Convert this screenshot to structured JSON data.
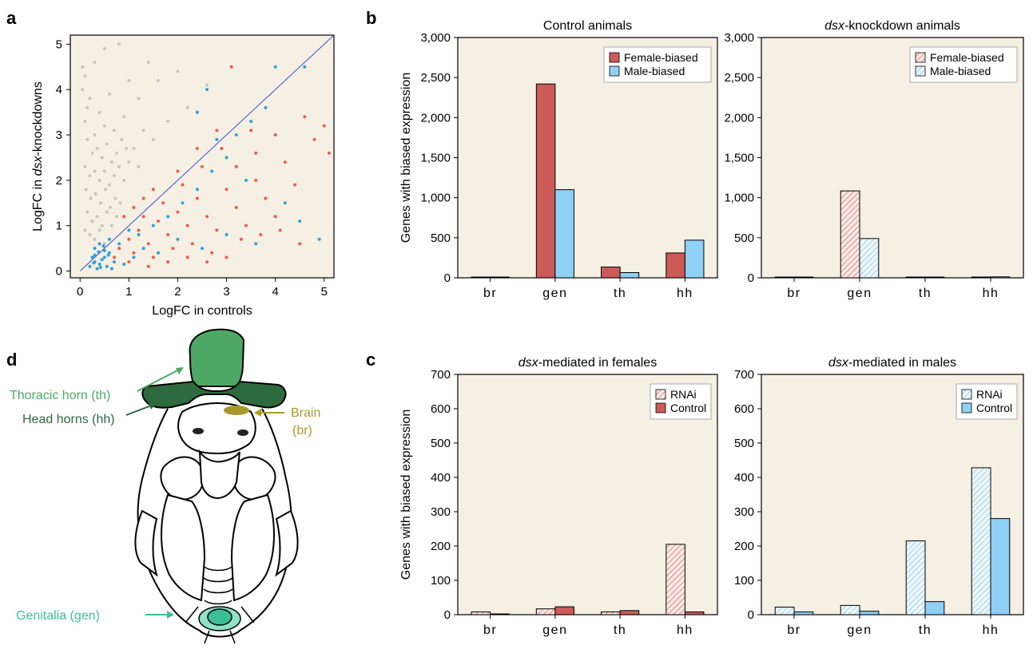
{
  "panel_letters": {
    "a": "a",
    "b": "b",
    "c": "c",
    "d": "d"
  },
  "colors": {
    "panel_bg": "#f5f0e3",
    "female": "#cc5a58",
    "male": "#8fd0f5",
    "scatter_gray": "#c4c4c4",
    "scatter_red": "#ee5a52",
    "scatter_blue": "#2ea0d8",
    "diagonal": "#3d4fd6",
    "thoracic_horn": "#4ea865",
    "head_horns": "#2d6a3e",
    "brain": "#a89a2a",
    "genitalia": "#3dbf95"
  },
  "diagram": {
    "thoracic_horn_label": "Thoracic horn (th)",
    "head_horns_label": "Head horns (hh)",
    "brain_label_1": "Brain",
    "brain_label_2": "(br)",
    "genitalia_label": "Genitalia (gen)"
  },
  "chart_data": [
    {
      "id": "a",
      "type": "scatter",
      "xlabel": "LogFC in controls",
      "ylabel_pre": "LogFC in ",
      "ylabel_italic": "dsx",
      "ylabel_post": "-knockdowns",
      "xlim": [
        -0.2,
        5.2
      ],
      "ylim": [
        -0.15,
        5.2
      ],
      "xticks": [
        0,
        1,
        2,
        3,
        4,
        5
      ],
      "yticks": [
        0,
        1,
        2,
        3,
        4,
        5
      ],
      "diagonal": "y = x",
      "series": [
        {
          "color_key": "scatter_gray",
          "points": [
            [
              0.05,
              4.5
            ],
            [
              0.1,
              4.3
            ],
            [
              0.3,
              4.6
            ],
            [
              0.5,
              4.9
            ],
            [
              0.8,
              5.0
            ],
            [
              0.2,
              3.8
            ],
            [
              0.4,
              3.5
            ],
            [
              0.6,
              3.9
            ],
            [
              1.0,
              4.2
            ],
            [
              1.4,
              4.6
            ],
            [
              0.1,
              3.3
            ],
            [
              0.3,
              3.0
            ],
            [
              0.5,
              3.2
            ],
            [
              0.7,
              3.1
            ],
            [
              0.9,
              3.4
            ],
            [
              1.2,
              3.8
            ],
            [
              1.6,
              4.2
            ],
            [
              2.0,
              4.4
            ],
            [
              0.15,
              2.9
            ],
            [
              0.25,
              2.6
            ],
            [
              0.35,
              2.7
            ],
            [
              0.45,
              2.5
            ],
            [
              0.55,
              2.8
            ],
            [
              0.65,
              2.4
            ],
            [
              0.75,
              2.6
            ],
            [
              0.85,
              2.9
            ],
            [
              1.1,
              2.7
            ],
            [
              1.3,
              3.1
            ],
            [
              0.1,
              2.3
            ],
            [
              0.2,
              2.1
            ],
            [
              0.3,
              2.2
            ],
            [
              0.4,
              2.0
            ],
            [
              0.5,
              2.2
            ],
            [
              0.6,
              1.9
            ],
            [
              0.7,
              2.1
            ],
            [
              0.8,
              2.3
            ],
            [
              0.9,
              2.0
            ],
            [
              1.0,
              2.4
            ],
            [
              1.2,
              2.3
            ],
            [
              0.12,
              1.8
            ],
            [
              0.22,
              1.6
            ],
            [
              0.32,
              1.7
            ],
            [
              0.42,
              1.5
            ],
            [
              0.52,
              1.8
            ],
            [
              0.62,
              1.4
            ],
            [
              0.72,
              1.6
            ],
            [
              0.82,
              1.5
            ],
            [
              0.15,
              1.3
            ],
            [
              0.25,
              1.1
            ],
            [
              0.35,
              1.2
            ],
            [
              0.45,
              1.0
            ],
            [
              0.55,
              1.3
            ],
            [
              0.65,
              1.0
            ],
            [
              0.75,
              1.2
            ],
            [
              0.1,
              0.9
            ],
            [
              0.2,
              0.8
            ],
            [
              0.3,
              0.7
            ],
            [
              0.4,
              0.9
            ],
            [
              0.5,
              0.6
            ],
            [
              1.5,
              2.9
            ],
            [
              1.8,
              3.3
            ],
            [
              2.2,
              3.6
            ],
            [
              2.6,
              4.1
            ],
            [
              0.05,
              4.0
            ],
            [
              0.15,
              3.6
            ],
            [
              0.95,
              2.7
            ]
          ]
        },
        {
          "color_key": "scatter_red",
          "points": [
            [
              0.8,
              0.5
            ],
            [
              1.0,
              0.7
            ],
            [
              1.2,
              0.9
            ],
            [
              1.4,
              0.6
            ],
            [
              1.6,
              1.1
            ],
            [
              1.8,
              0.8
            ],
            [
              2.0,
              1.3
            ],
            [
              2.2,
              1.0
            ],
            [
              2.4,
              1.6
            ],
            [
              2.6,
              1.2
            ],
            [
              2.8,
              0.9
            ],
            [
              3.0,
              1.8
            ],
            [
              3.2,
              1.4
            ],
            [
              3.4,
              1.0
            ],
            [
              3.6,
              2.0
            ],
            [
              3.8,
              1.6
            ],
            [
              4.0,
              1.2
            ],
            [
              4.2,
              2.4
            ],
            [
              4.4,
              1.9
            ],
            [
              4.6,
              3.4
            ],
            [
              4.8,
              2.9
            ],
            [
              5.0,
              3.2
            ],
            [
              5.1,
              2.6
            ],
            [
              3.1,
              4.5
            ],
            [
              3.5,
              3.1
            ],
            [
              2.9,
              2.7
            ],
            [
              2.5,
              2.3
            ],
            [
              2.1,
              1.9
            ],
            [
              1.7,
              1.5
            ],
            [
              1.3,
              1.2
            ],
            [
              1.1,
              0.4
            ],
            [
              1.5,
              0.3
            ],
            [
              1.9,
              0.5
            ],
            [
              2.3,
              0.6
            ],
            [
              2.7,
              0.4
            ],
            [
              3.3,
              0.7
            ],
            [
              3.7,
              0.8
            ],
            [
              4.1,
              0.9
            ],
            [
              4.5,
              0.6
            ],
            [
              2.0,
              2.2
            ],
            [
              2.4,
              2.7
            ],
            [
              2.8,
              3.1
            ],
            [
              3.2,
              2.3
            ],
            [
              3.6,
              2.6
            ],
            [
              4.0,
              3.0
            ],
            [
              0.9,
              1.2
            ],
            [
              1.1,
              1.4
            ],
            [
              1.3,
              1.6
            ],
            [
              1.5,
              1.8
            ],
            [
              0.7,
              0.3
            ],
            [
              1.0,
              0.2
            ],
            [
              1.4,
              0.1
            ],
            [
              1.8,
              0.2
            ],
            [
              2.2,
              0.3
            ],
            [
              2.6,
              0.2
            ],
            [
              3.0,
              0.3
            ]
          ]
        },
        {
          "color_key": "scatter_blue",
          "points": [
            [
              0.2,
              0.1
            ],
            [
              0.3,
              0.2
            ],
            [
              0.4,
              0.15
            ],
            [
              0.5,
              0.3
            ],
            [
              0.35,
              0.05
            ],
            [
              0.45,
              0.25
            ],
            [
              0.55,
              0.1
            ],
            [
              0.25,
              0.3
            ],
            [
              0.6,
              0.4
            ],
            [
              0.7,
              0.2
            ],
            [
              0.3,
              0.5
            ],
            [
              0.4,
              0.6
            ],
            [
              0.5,
              0.45
            ],
            [
              0.6,
              0.7
            ],
            [
              0.8,
              0.6
            ],
            [
              1.0,
              0.9
            ],
            [
              1.2,
              0.8
            ],
            [
              1.5,
              1.0
            ],
            [
              1.8,
              1.2
            ],
            [
              2.1,
              1.5
            ],
            [
              2.4,
              1.8
            ],
            [
              2.7,
              2.2
            ],
            [
              3.0,
              2.5
            ],
            [
              3.2,
              3.0
            ],
            [
              3.5,
              3.3
            ],
            [
              3.8,
              3.6
            ],
            [
              4.0,
              4.5
            ],
            [
              4.6,
              4.5
            ],
            [
              2.6,
              4.0
            ],
            [
              2.4,
              3.5
            ],
            [
              2.8,
              2.9
            ],
            [
              3.4,
              2.0
            ],
            [
              4.2,
              1.5
            ],
            [
              4.5,
              1.1
            ],
            [
              4.9,
              0.7
            ],
            [
              2.0,
              0.7
            ],
            [
              2.5,
              0.5
            ],
            [
              3.0,
              0.8
            ],
            [
              3.6,
              0.6
            ],
            [
              1.6,
              0.4
            ],
            [
              1.3,
              0.5
            ],
            [
              1.1,
              0.3
            ],
            [
              0.9,
              0.15
            ],
            [
              0.65,
              0.05
            ],
            [
              0.3,
              0.35
            ],
            [
              0.38,
              0.42
            ],
            [
              0.48,
              0.55
            ],
            [
              0.58,
              0.35
            ],
            [
              0.28,
              0.18
            ],
            [
              0.42,
              0.08
            ]
          ]
        }
      ]
    },
    {
      "id": "b-left",
      "type": "bar",
      "title": "Control animals",
      "ylabel": "Genes with biased expression",
      "categories": [
        "br",
        "gen",
        "th",
        "hh"
      ],
      "ylim": [
        0,
        3000
      ],
      "yticks": [
        "0",
        "500",
        "1,000",
        "1,500",
        "2,000",
        "2,500",
        "3,000"
      ],
      "series": [
        {
          "name": "Female-biased",
          "values": [
            5,
            2420,
            135,
            310
          ],
          "color_key": "female",
          "hatched": false
        },
        {
          "name": "Male-biased",
          "values": [
            8,
            1100,
            65,
            470
          ],
          "color_key": "male",
          "hatched": false
        }
      ]
    },
    {
      "id": "b-right",
      "type": "bar",
      "title_italic": "dsx",
      "title_rest": "-knockdown animals",
      "categories": [
        "br",
        "gen",
        "th",
        "hh"
      ],
      "ylim": [
        0,
        3000
      ],
      "yticks": [
        "0",
        "500",
        "1,000",
        "1,500",
        "2,000",
        "2,500",
        "3,000"
      ],
      "series": [
        {
          "name": "Female-biased",
          "values": [
            3,
            1085,
            2,
            8
          ],
          "color_key": "female",
          "hatched": true
        },
        {
          "name": "Male-biased",
          "values": [
            3,
            490,
            2,
            12
          ],
          "color_key": "male",
          "hatched": true
        }
      ]
    },
    {
      "id": "c-left",
      "type": "bar",
      "title_italic": "dsx",
      "title_rest": "-mediated in females",
      "ylabel": "Genes with biased expression",
      "categories": [
        "br",
        "gen",
        "th",
        "hh"
      ],
      "ylim": [
        0,
        700
      ],
      "yticks": [
        "0",
        "100",
        "200",
        "300",
        "400",
        "500",
        "600",
        "700"
      ],
      "series": [
        {
          "name": "RNAi",
          "values": [
            8,
            17,
            8,
            205
          ],
          "color_key": "female",
          "hatched": true
        },
        {
          "name": "Control",
          "values": [
            2,
            23,
            12,
            8
          ],
          "color_key": "female",
          "hatched": false
        }
      ]
    },
    {
      "id": "c-right",
      "type": "bar",
      "title_italic": "dsx",
      "title_rest": "-mediated in males",
      "categories": [
        "br",
        "gen",
        "th",
        "hh"
      ],
      "ylim": [
        0,
        700
      ],
      "yticks": [
        "0",
        "100",
        "200",
        "300",
        "400",
        "500",
        "600",
        "700"
      ],
      "series": [
        {
          "name": "RNAi",
          "values": [
            22,
            27,
            215,
            428
          ],
          "color_key": "male",
          "hatched": true
        },
        {
          "name": "Control",
          "values": [
            8,
            10,
            38,
            280
          ],
          "color_key": "male",
          "hatched": false
        }
      ]
    }
  ]
}
